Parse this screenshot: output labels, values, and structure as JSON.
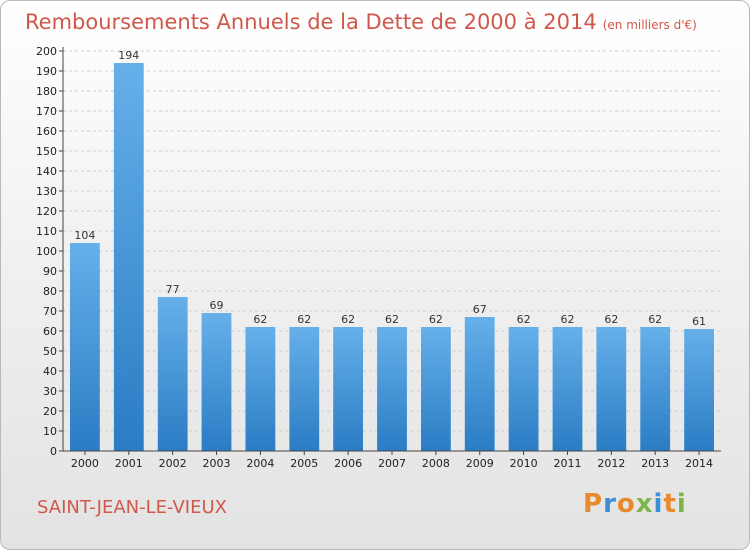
{
  "header": {
    "title": "Remboursements Annuels de la Dette de 2000 à 2014",
    "unit": "(en milliers d'€)"
  },
  "footer": {
    "place": "SAINT-JEAN-LE-VIEUX",
    "logo": "Proxiti",
    "logo_colors": [
      "#e8892c",
      "#3a8fd6",
      "#e8892c",
      "#7ab648",
      "#3a8fd6",
      "#e8892c",
      "#7ab648"
    ]
  },
  "colors": {
    "bar_top": "#66b0ea",
    "bar_bottom": "#2a7cc4",
    "title": "#d0584a"
  },
  "chart_data": {
    "type": "bar",
    "title": "Remboursements Annuels de la Dette de 2000 à 2014",
    "subtitle": "(en milliers d'€)",
    "categories": [
      "2000",
      "2001",
      "2002",
      "2003",
      "2004",
      "2005",
      "2006",
      "2007",
      "2008",
      "2009",
      "2010",
      "2011",
      "2012",
      "2013",
      "2014"
    ],
    "values": [
      104,
      194,
      77,
      69,
      62,
      62,
      62,
      62,
      62,
      67,
      62,
      62,
      62,
      62,
      61
    ],
    "ylim": [
      0,
      200
    ],
    "ytick_step": 10,
    "grid": true
  }
}
